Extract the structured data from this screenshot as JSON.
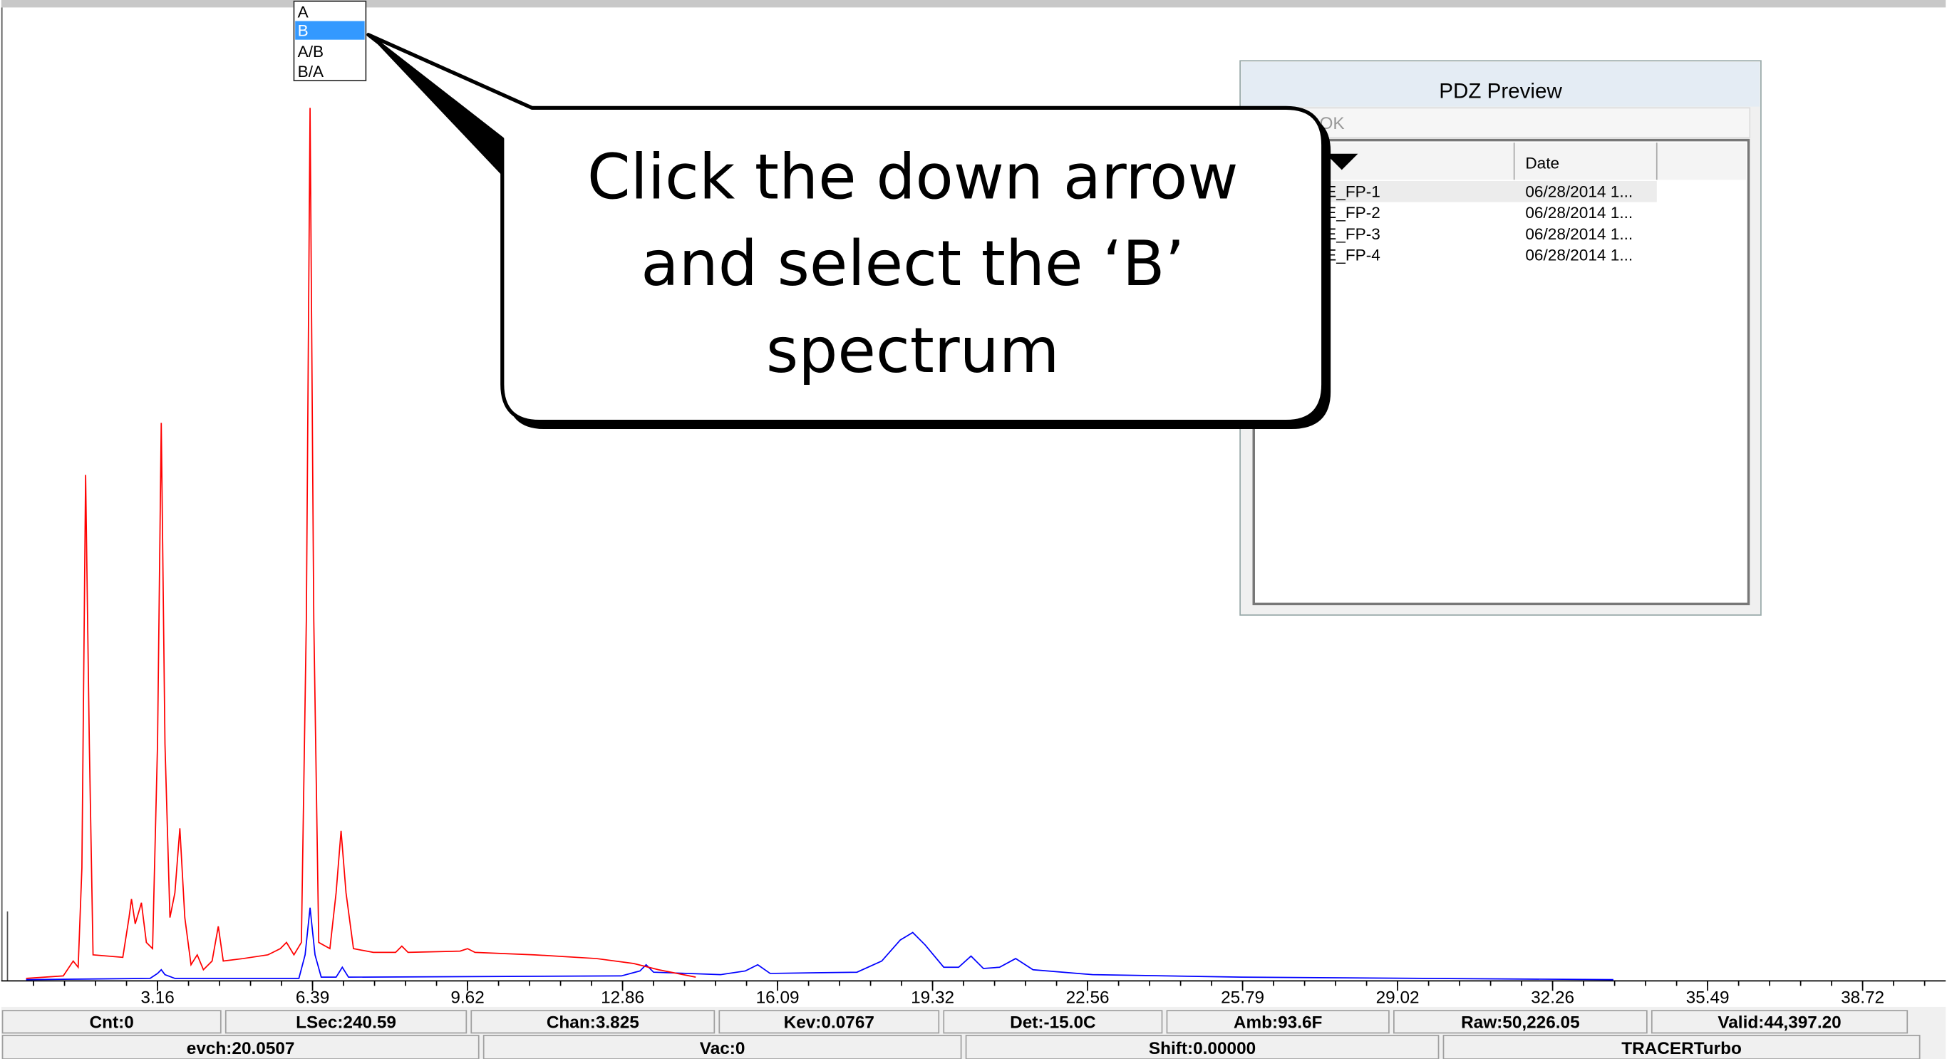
{
  "dropdown": {
    "options": [
      "A",
      "B",
      "A/B",
      "B/A"
    ]
  },
  "callout": {
    "lines": [
      "Click the down arrow",
      "and select the ‘B’",
      "spectrum"
    ]
  },
  "pdz_preview": {
    "title": "PDZ Preview",
    "button": "OK",
    "columns": [
      "Date"
    ],
    "rows": [
      [
        "E_FP-1",
        "06/28/2014 1..."
      ],
      [
        "E_FP-2",
        "06/28/2014 1..."
      ],
      [
        "E_FP-3",
        "06/28/2014 1..."
      ],
      [
        "E_FP-4",
        "06/28/2014 1..."
      ]
    ]
  },
  "x_axis": {
    "ticks": [
      "3.16",
      "6.39",
      "9.62",
      "12.86",
      "16.09",
      "19.32",
      "22.56",
      "25.79",
      "29.02",
      "32.26",
      "35.49",
      "38.72"
    ]
  },
  "status_bar": {
    "row1": [
      "Cnt:0",
      "LSec:240.59",
      "Chan:3.825",
      "Kev:0.0767",
      "Det:-15.0C",
      "Amb:93.6F",
      "Raw:50,226.05",
      "Valid:44,397.20"
    ],
    "row2": [
      "evch:20.0507",
      "Vac:0",
      "Shift:0.00000",
      "TRACERTurbo"
    ]
  }
}
